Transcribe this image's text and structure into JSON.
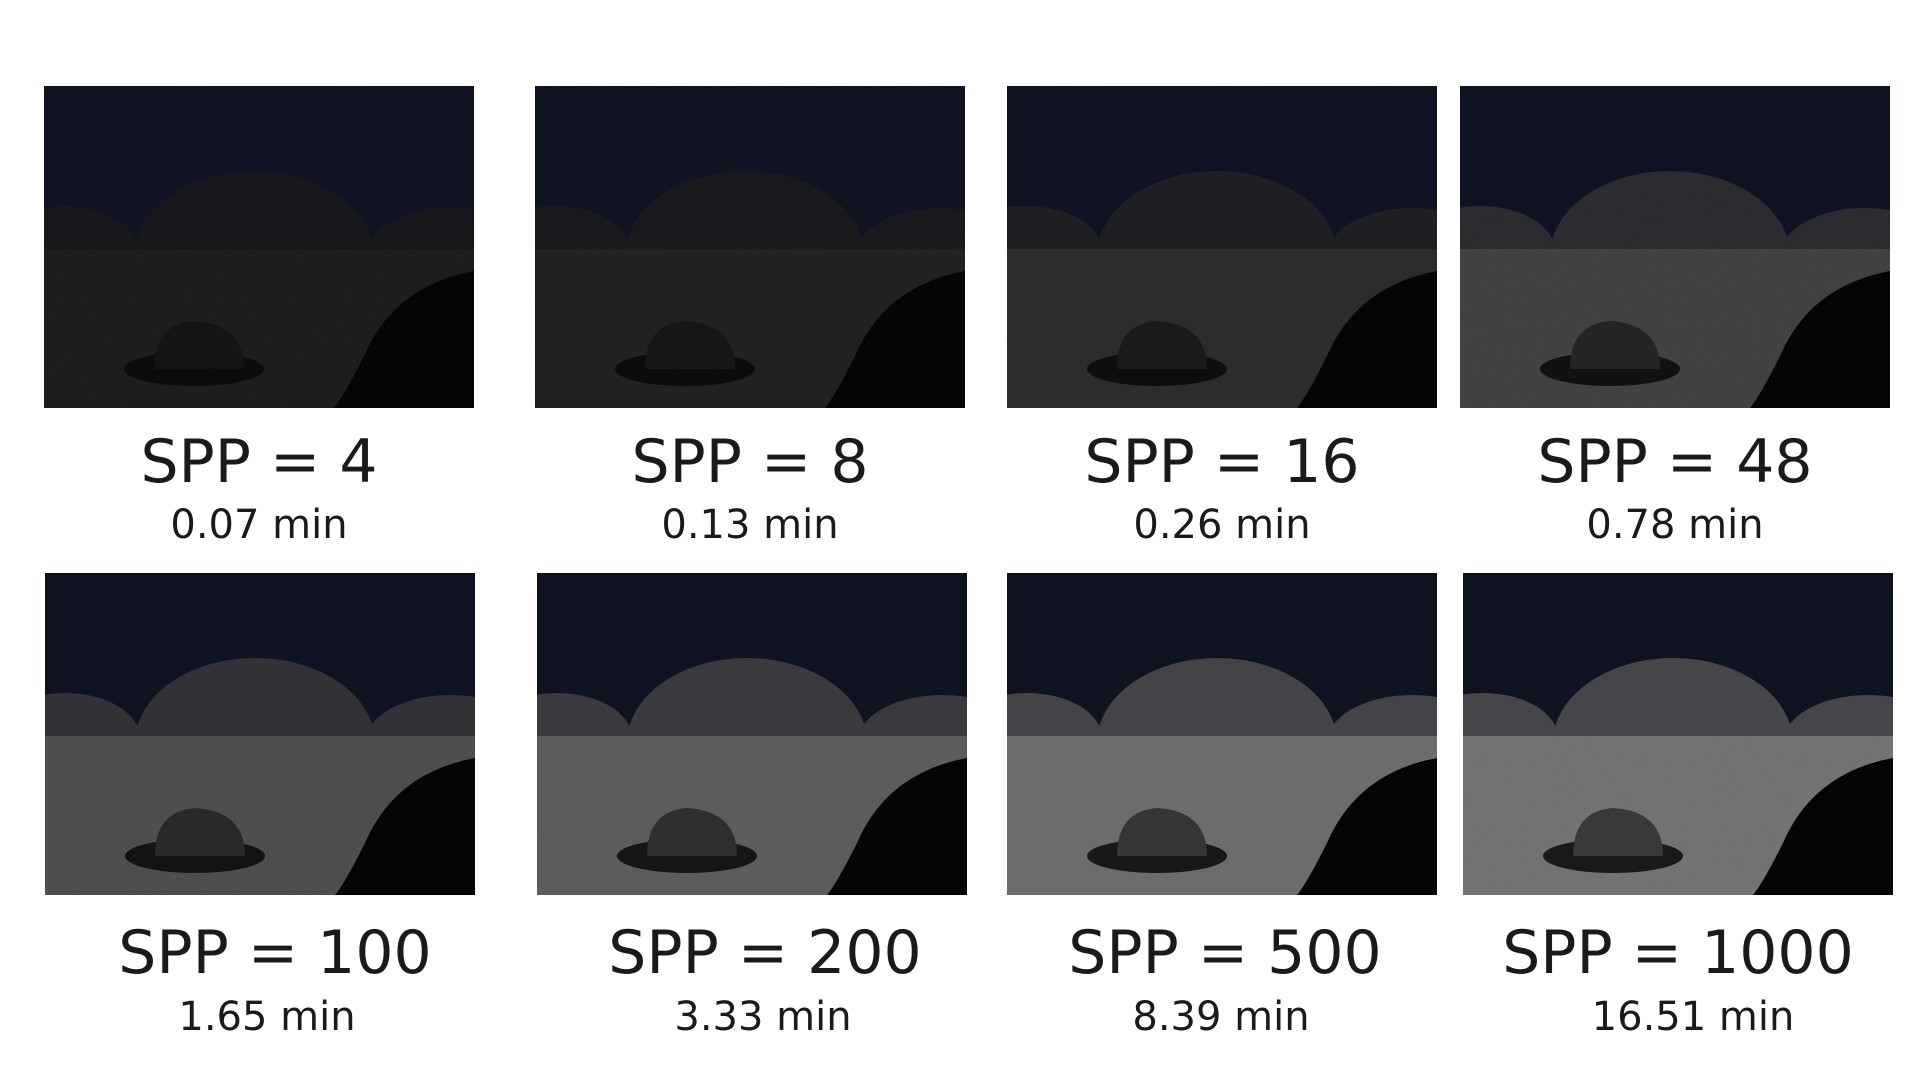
{
  "renders": [
    {
      "spp_label": "SPP = 4",
      "time_label": "0.07 min",
      "brightness": 0.05
    },
    {
      "spp_label": "SPP = 8",
      "time_label": "0.13 min",
      "brightness": 0.09
    },
    {
      "spp_label": "SPP = 16",
      "time_label": "0.26 min",
      "brightness": 0.2
    },
    {
      "spp_label": "SPP = 48",
      "time_label": "0.78 min",
      "brightness": 0.42
    },
    {
      "spp_label": "SPP = 100",
      "time_label": "1.65 min",
      "brightness": 0.55
    },
    {
      "spp_label": "SPP = 200",
      "time_label": "3.33 min",
      "brightness": 0.7
    },
    {
      "spp_label": "SPP = 500",
      "time_label": "8.39 min",
      "brightness": 0.88
    },
    {
      "spp_label": "SPP = 1000",
      "time_label": "16.51 min",
      "brightness": 0.95
    }
  ]
}
